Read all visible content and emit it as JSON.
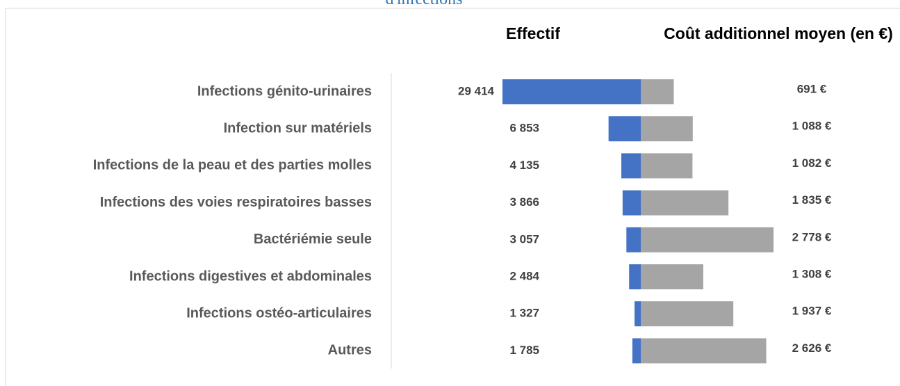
{
  "chart_data": {
    "type": "diverging_bar",
    "title": "d'infections",
    "categories": [
      "Infections génito-urinaires",
      "Infection sur matériels",
      "Infections de la peau et des parties molles",
      "Infections des voies respiratoires basses",
      "Bactériémie seule ",
      "Infections digestives et abdominales",
      "Infections ostéo-articulaires",
      "Autres"
    ],
    "series": [
      {
        "name": "Effectif",
        "color": "#4472c4",
        "values": [
          29414,
          6853,
          4135,
          3866,
          3057,
          2484,
          1327,
          1785
        ],
        "value_labels": [
          "29 414",
          "6 853",
          "4 135",
          "3 866",
          "3 057",
          "2 484",
          "1 327",
          "1 785"
        ]
      },
      {
        "name": "Coût additionnel moyen (en €)",
        "color": "#a5a5a5",
        "values": [
          691,
          1088,
          1082,
          1835,
          2778,
          1308,
          1937,
          2626
        ],
        "value_labels": [
          "691 €",
          "1 088 €",
          "1 082 €",
          "1 835 €",
          "2 778 €",
          "1 308 €",
          "1 937 €",
          "2 626 €"
        ]
      }
    ]
  }
}
